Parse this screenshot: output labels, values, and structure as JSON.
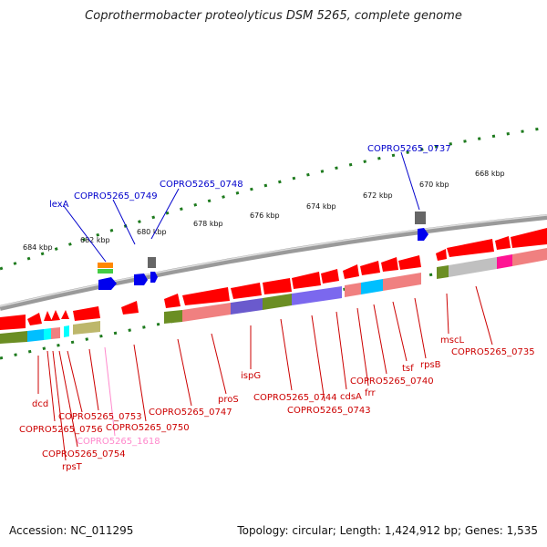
{
  "title": "Coprothermobacter proteolyticus DSM 5265, complete genome",
  "footer": {
    "accession": "Accession: NC_011295",
    "topology": "Topology: circular; Length: 1,424,912 bp; Genes: 1,535"
  },
  "colors": {
    "cds": "#ff0000",
    "rrna_track": "#6b8e23",
    "backbone": "#8a8a8a",
    "label_red": "#cc0000",
    "label_blue": "#0000cc",
    "label_pink": "#ff88cc",
    "tick": "#1d7a1d"
  },
  "kbp_labels": [
    "684 kbp",
    "682 kbp",
    "680 kbp",
    "678 kbp",
    "676 kbp",
    "674 kbp",
    "672 kbp",
    "670 kbp",
    "668 kbp"
  ],
  "blue_labels": [
    "lexA",
    "COPRO5265_0749",
    "COPRO5265_0748",
    "COPRO5265_0737"
  ],
  "red_labels": [
    "dcd",
    "COPRO5265_0756",
    "rpsT",
    "COPRO5265_0754",
    "COPRO5265_0753",
    "COPRO5265_1618",
    "COPRO5265_0750",
    "COPRO5265_0747",
    "proS",
    "ispG",
    "COPRO5265_0744",
    "COPRO5265_0743",
    "cdsA",
    "frr",
    "COPRO5265_0740",
    "tsf",
    "rpsB",
    "mscL",
    "COPRO5265_0735"
  ]
}
